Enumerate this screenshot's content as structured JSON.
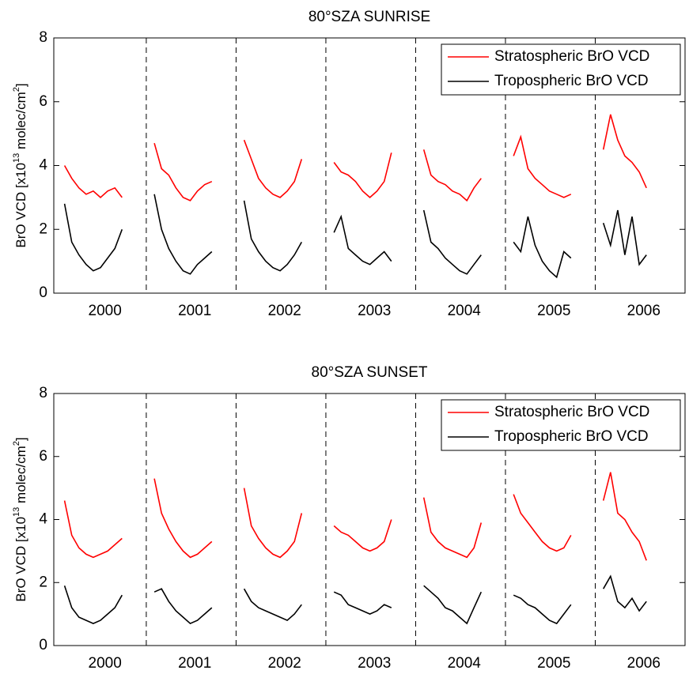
{
  "chart_data": [
    {
      "type": "line",
      "title": "80°SZA SUNRISE",
      "ylabel": [
        "BrO VCD [x10",
        "13",
        " molec/cm",
        "2",
        "]"
      ],
      "x": [
        1999.55,
        1999.63,
        1999.71,
        1999.79,
        1999.87,
        1999.95,
        2000.03,
        2000.11,
        2000.19,
        2000.4,
        2000.55,
        2000.63,
        2000.71,
        2000.79,
        2000.87,
        2000.95,
        2001.03,
        2001.11,
        2001.19,
        2001.4,
        2001.55,
        2001.63,
        2001.71,
        2001.79,
        2001.87,
        2001.95,
        2002.03,
        2002.11,
        2002.19,
        2002.4,
        2002.55,
        2002.63,
        2002.71,
        2002.79,
        2002.87,
        2002.95,
        2003.03,
        2003.11,
        2003.19,
        2003.4,
        2003.55,
        2003.63,
        2003.71,
        2003.79,
        2003.87,
        2003.95,
        2004.03,
        2004.11,
        2004.19,
        2004.4,
        2004.55,
        2004.63,
        2004.71,
        2004.79,
        2004.87,
        2004.95,
        2005.03,
        2005.11,
        2005.19,
        2005.4,
        2005.55,
        2005.63,
        2005.71,
        2005.79,
        2005.87,
        2005.95,
        2006.03
      ],
      "series": [
        {
          "name": "Stratospheric BrO VCD",
          "color": "#ff0000",
          "values": [
            4.0,
            3.6,
            3.3,
            3.1,
            3.2,
            3.0,
            3.2,
            3.3,
            3.0,
            null,
            4.7,
            3.9,
            3.7,
            3.3,
            3.0,
            2.9,
            3.2,
            3.4,
            3.5,
            null,
            4.8,
            4.2,
            3.6,
            3.3,
            3.1,
            3.0,
            3.2,
            3.5,
            4.2,
            null,
            4.1,
            3.8,
            3.7,
            3.5,
            3.2,
            3.0,
            3.2,
            3.5,
            4.4,
            null,
            4.5,
            3.7,
            3.5,
            3.4,
            3.2,
            3.1,
            2.9,
            3.3,
            3.6,
            null,
            4.3,
            4.9,
            3.9,
            3.6,
            3.4,
            3.2,
            3.1,
            3.0,
            3.1,
            null,
            4.5,
            5.6,
            4.8,
            4.3,
            4.1,
            3.8,
            3.3
          ]
        },
        {
          "name": "Tropospheric BrO VCD",
          "color": "#000000",
          "values": [
            2.8,
            1.6,
            1.2,
            0.9,
            0.7,
            0.8,
            1.1,
            1.4,
            2.0,
            null,
            3.1,
            2.0,
            1.4,
            1.0,
            0.7,
            0.6,
            0.9,
            1.1,
            1.3,
            null,
            2.9,
            1.7,
            1.3,
            1.0,
            0.8,
            0.7,
            0.9,
            1.2,
            1.6,
            null,
            1.9,
            2.4,
            1.4,
            1.2,
            1.0,
            0.9,
            1.1,
            1.3,
            1.0,
            null,
            2.6,
            1.6,
            1.4,
            1.1,
            0.9,
            0.7,
            0.6,
            0.9,
            1.2,
            null,
            1.6,
            1.3,
            2.4,
            1.5,
            1.0,
            0.7,
            0.5,
            1.3,
            1.1,
            null,
            2.2,
            1.5,
            2.6,
            1.2,
            2.4,
            0.9,
            1.2
          ]
        }
      ],
      "xlim": [
        1999.43,
        2006.46
      ],
      "xticks": [
        2000,
        2001,
        2002,
        2003,
        2004,
        2005,
        2006
      ],
      "separators": [
        2000.46,
        2001.46,
        2002.46,
        2003.46,
        2004.46,
        2005.46
      ],
      "ylim": [
        0,
        8
      ],
      "yticks": [
        0,
        2,
        4,
        6,
        8
      ],
      "legend": "upper right"
    },
    {
      "type": "line",
      "title": "80°SZA SUNSET",
      "ylabel": [
        "BrO VCD [x10",
        "13",
        " molec/cm",
        "2",
        "]"
      ],
      "x": [
        1999.55,
        1999.63,
        1999.71,
        1999.79,
        1999.87,
        1999.95,
        2000.03,
        2000.11,
        2000.19,
        2000.4,
        2000.55,
        2000.63,
        2000.71,
        2000.79,
        2000.87,
        2000.95,
        2001.03,
        2001.11,
        2001.19,
        2001.4,
        2001.55,
        2001.63,
        2001.71,
        2001.79,
        2001.87,
        2001.95,
        2002.03,
        2002.11,
        2002.19,
        2002.4,
        2002.55,
        2002.63,
        2002.71,
        2002.79,
        2002.87,
        2002.95,
        2003.03,
        2003.11,
        2003.19,
        2003.4,
        2003.55,
        2003.63,
        2003.71,
        2003.79,
        2003.87,
        2003.95,
        2004.03,
        2004.11,
        2004.19,
        2004.4,
        2004.55,
        2004.63,
        2004.71,
        2004.79,
        2004.87,
        2004.95,
        2005.03,
        2005.11,
        2005.19,
        2005.4,
        2005.55,
        2005.63,
        2005.71,
        2005.79,
        2005.87,
        2005.95,
        2006.03
      ],
      "series": [
        {
          "name": "Stratospheric BrO VCD",
          "color": "#ff0000",
          "values": [
            4.6,
            3.5,
            3.1,
            2.9,
            2.8,
            2.9,
            3.0,
            3.2,
            3.4,
            null,
            5.3,
            4.2,
            3.7,
            3.3,
            3.0,
            2.8,
            2.9,
            3.1,
            3.3,
            null,
            5.0,
            3.8,
            3.4,
            3.1,
            2.9,
            2.8,
            3.0,
            3.3,
            4.2,
            null,
            3.8,
            3.6,
            3.5,
            3.3,
            3.1,
            3.0,
            3.1,
            3.3,
            4.0,
            null,
            4.7,
            3.6,
            3.3,
            3.1,
            3.0,
            2.9,
            2.8,
            3.1,
            3.9,
            null,
            4.8,
            4.2,
            3.9,
            3.6,
            3.3,
            3.1,
            3.0,
            3.1,
            3.5,
            null,
            4.6,
            5.5,
            4.2,
            4.0,
            3.6,
            3.3,
            2.7
          ]
        },
        {
          "name": "Tropospheric BrO VCD",
          "color": "#000000",
          "values": [
            1.9,
            1.2,
            0.9,
            0.8,
            0.7,
            0.8,
            1.0,
            1.2,
            1.6,
            null,
            1.7,
            1.8,
            1.4,
            1.1,
            0.9,
            0.7,
            0.8,
            1.0,
            1.2,
            null,
            1.8,
            1.4,
            1.2,
            1.1,
            1.0,
            0.9,
            0.8,
            1.0,
            1.3,
            null,
            1.7,
            1.6,
            1.3,
            1.2,
            1.1,
            1.0,
            1.1,
            1.3,
            1.2,
            null,
            1.9,
            1.7,
            1.5,
            1.2,
            1.1,
            0.9,
            0.7,
            1.2,
            1.7,
            null,
            1.6,
            1.5,
            1.3,
            1.2,
            1.0,
            0.8,
            0.7,
            1.0,
            1.3,
            null,
            1.8,
            2.2,
            1.4,
            1.2,
            1.5,
            1.1,
            1.4
          ]
        }
      ],
      "xlim": [
        1999.43,
        2006.46
      ],
      "xticks": [
        2000,
        2001,
        2002,
        2003,
        2004,
        2005,
        2006
      ],
      "separators": [
        2000.46,
        2001.46,
        2002.46,
        2003.46,
        2004.46,
        2005.46
      ],
      "ylim": [
        0,
        8
      ],
      "yticks": [
        0,
        2,
        4,
        6,
        8
      ],
      "legend": "upper right"
    }
  ]
}
